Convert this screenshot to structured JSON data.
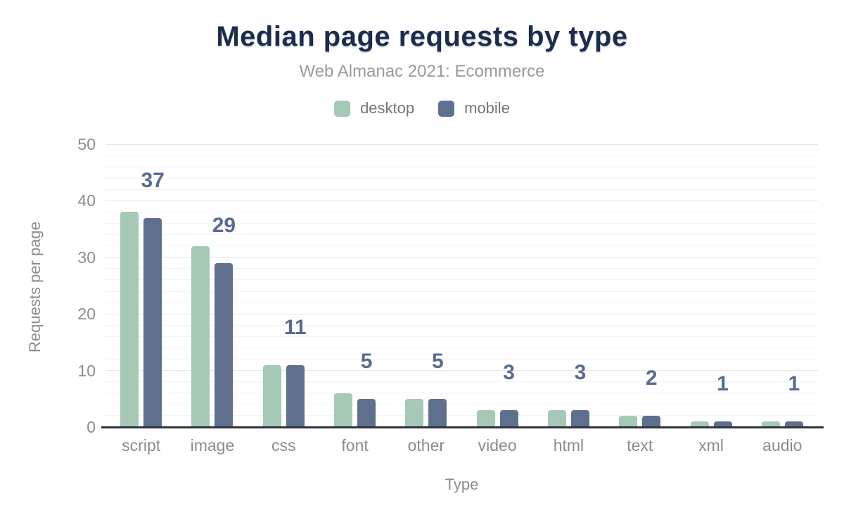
{
  "header": {
    "title": "Median page requests by type",
    "subtitle": "Web Almanac 2021: Ecommerce"
  },
  "legend": {
    "items": [
      {
        "label": "desktop",
        "color": "#a5c9b6"
      },
      {
        "label": "mobile",
        "color": "#5e708e"
      }
    ]
  },
  "chart_data": {
    "type": "bar",
    "categories": [
      "script",
      "image",
      "css",
      "font",
      "other",
      "video",
      "html",
      "text",
      "xml",
      "audio"
    ],
    "series": [
      {
        "name": "desktop",
        "color": "#a5c9b6",
        "values": [
          38,
          32,
          11,
          6,
          5,
          3,
          3,
          2,
          1,
          1
        ]
      },
      {
        "name": "mobile",
        "color": "#5e708e",
        "values": [
          37,
          29,
          11,
          5,
          5,
          3,
          3,
          2,
          1,
          1
        ]
      }
    ],
    "data_labels": [
      "37",
      "29",
      "11",
      "5",
      "5",
      "3",
      "3",
      "2",
      "1",
      "1"
    ],
    "data_labels_series": "mobile",
    "title": "Median page requests by type",
    "subtitle": "Web Almanac 2021: Ecommerce",
    "xlabel": "Type",
    "ylabel": "Requests per page",
    "ylim": [
      0,
      50
    ],
    "yticks": [
      0,
      10,
      20,
      30,
      40,
      50
    ],
    "minor_grid_step": 2,
    "grid": true,
    "legend_position": "top"
  },
  "colors": {
    "title_text": "#1d2c4e",
    "subtitle_text": "#9a9a9a",
    "legend_text": "#757575",
    "axis_text": "#8c8c8c",
    "data_label_text": "#5a6b90",
    "grid_major": "#e7e7e7",
    "grid_minor": "#f4f4f4",
    "axis_line": "#30343c",
    "background": "#ffffff"
  }
}
